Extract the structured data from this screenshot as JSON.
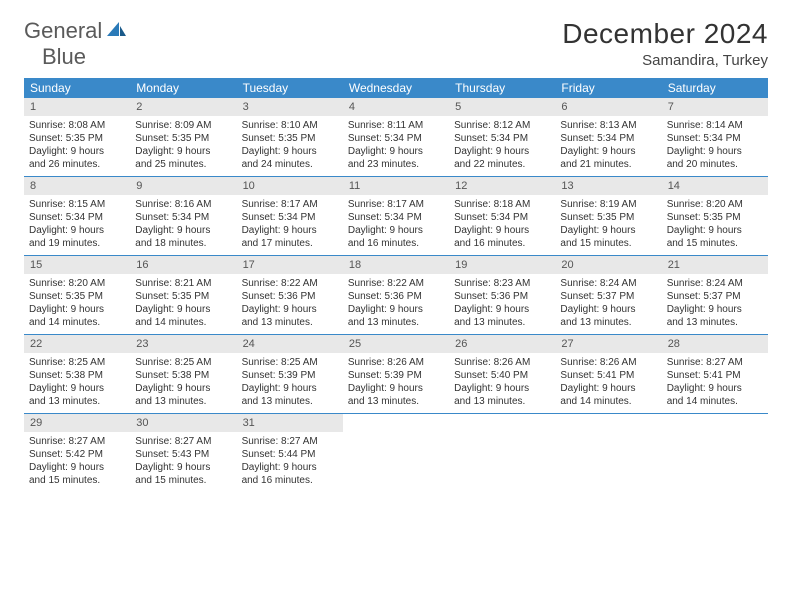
{
  "logo": {
    "text1": "General",
    "text2": "Blue"
  },
  "title": "December 2024",
  "location": "Samandira, Turkey",
  "colors": {
    "header_bg": "#3a89c9",
    "header_text": "#ffffff",
    "daynum_bg": "#e8e8e8",
    "week_border": "#3a89c9",
    "text": "#333333"
  },
  "typography": {
    "title_fontsize": 28,
    "location_fontsize": 15,
    "dayheader_fontsize": 12,
    "cell_fontsize": 10
  },
  "day_names": [
    "Sunday",
    "Monday",
    "Tuesday",
    "Wednesday",
    "Thursday",
    "Friday",
    "Saturday"
  ],
  "weeks": [
    [
      {
        "n": "1",
        "sr": "Sunrise: 8:08 AM",
        "ss": "Sunset: 5:35 PM",
        "d1": "Daylight: 9 hours",
        "d2": "and 26 minutes."
      },
      {
        "n": "2",
        "sr": "Sunrise: 8:09 AM",
        "ss": "Sunset: 5:35 PM",
        "d1": "Daylight: 9 hours",
        "d2": "and 25 minutes."
      },
      {
        "n": "3",
        "sr": "Sunrise: 8:10 AM",
        "ss": "Sunset: 5:35 PM",
        "d1": "Daylight: 9 hours",
        "d2": "and 24 minutes."
      },
      {
        "n": "4",
        "sr": "Sunrise: 8:11 AM",
        "ss": "Sunset: 5:34 PM",
        "d1": "Daylight: 9 hours",
        "d2": "and 23 minutes."
      },
      {
        "n": "5",
        "sr": "Sunrise: 8:12 AM",
        "ss": "Sunset: 5:34 PM",
        "d1": "Daylight: 9 hours",
        "d2": "and 22 minutes."
      },
      {
        "n": "6",
        "sr": "Sunrise: 8:13 AM",
        "ss": "Sunset: 5:34 PM",
        "d1": "Daylight: 9 hours",
        "d2": "and 21 minutes."
      },
      {
        "n": "7",
        "sr": "Sunrise: 8:14 AM",
        "ss": "Sunset: 5:34 PM",
        "d1": "Daylight: 9 hours",
        "d2": "and 20 minutes."
      }
    ],
    [
      {
        "n": "8",
        "sr": "Sunrise: 8:15 AM",
        "ss": "Sunset: 5:34 PM",
        "d1": "Daylight: 9 hours",
        "d2": "and 19 minutes."
      },
      {
        "n": "9",
        "sr": "Sunrise: 8:16 AM",
        "ss": "Sunset: 5:34 PM",
        "d1": "Daylight: 9 hours",
        "d2": "and 18 minutes."
      },
      {
        "n": "10",
        "sr": "Sunrise: 8:17 AM",
        "ss": "Sunset: 5:34 PM",
        "d1": "Daylight: 9 hours",
        "d2": "and 17 minutes."
      },
      {
        "n": "11",
        "sr": "Sunrise: 8:17 AM",
        "ss": "Sunset: 5:34 PM",
        "d1": "Daylight: 9 hours",
        "d2": "and 16 minutes."
      },
      {
        "n": "12",
        "sr": "Sunrise: 8:18 AM",
        "ss": "Sunset: 5:34 PM",
        "d1": "Daylight: 9 hours",
        "d2": "and 16 minutes."
      },
      {
        "n": "13",
        "sr": "Sunrise: 8:19 AM",
        "ss": "Sunset: 5:35 PM",
        "d1": "Daylight: 9 hours",
        "d2": "and 15 minutes."
      },
      {
        "n": "14",
        "sr": "Sunrise: 8:20 AM",
        "ss": "Sunset: 5:35 PM",
        "d1": "Daylight: 9 hours",
        "d2": "and 15 minutes."
      }
    ],
    [
      {
        "n": "15",
        "sr": "Sunrise: 8:20 AM",
        "ss": "Sunset: 5:35 PM",
        "d1": "Daylight: 9 hours",
        "d2": "and 14 minutes."
      },
      {
        "n": "16",
        "sr": "Sunrise: 8:21 AM",
        "ss": "Sunset: 5:35 PM",
        "d1": "Daylight: 9 hours",
        "d2": "and 14 minutes."
      },
      {
        "n": "17",
        "sr": "Sunrise: 8:22 AM",
        "ss": "Sunset: 5:36 PM",
        "d1": "Daylight: 9 hours",
        "d2": "and 13 minutes."
      },
      {
        "n": "18",
        "sr": "Sunrise: 8:22 AM",
        "ss": "Sunset: 5:36 PM",
        "d1": "Daylight: 9 hours",
        "d2": "and 13 minutes."
      },
      {
        "n": "19",
        "sr": "Sunrise: 8:23 AM",
        "ss": "Sunset: 5:36 PM",
        "d1": "Daylight: 9 hours",
        "d2": "and 13 minutes."
      },
      {
        "n": "20",
        "sr": "Sunrise: 8:24 AM",
        "ss": "Sunset: 5:37 PM",
        "d1": "Daylight: 9 hours",
        "d2": "and 13 minutes."
      },
      {
        "n": "21",
        "sr": "Sunrise: 8:24 AM",
        "ss": "Sunset: 5:37 PM",
        "d1": "Daylight: 9 hours",
        "d2": "and 13 minutes."
      }
    ],
    [
      {
        "n": "22",
        "sr": "Sunrise: 8:25 AM",
        "ss": "Sunset: 5:38 PM",
        "d1": "Daylight: 9 hours",
        "d2": "and 13 minutes."
      },
      {
        "n": "23",
        "sr": "Sunrise: 8:25 AM",
        "ss": "Sunset: 5:38 PM",
        "d1": "Daylight: 9 hours",
        "d2": "and 13 minutes."
      },
      {
        "n": "24",
        "sr": "Sunrise: 8:25 AM",
        "ss": "Sunset: 5:39 PM",
        "d1": "Daylight: 9 hours",
        "d2": "and 13 minutes."
      },
      {
        "n": "25",
        "sr": "Sunrise: 8:26 AM",
        "ss": "Sunset: 5:39 PM",
        "d1": "Daylight: 9 hours",
        "d2": "and 13 minutes."
      },
      {
        "n": "26",
        "sr": "Sunrise: 8:26 AM",
        "ss": "Sunset: 5:40 PM",
        "d1": "Daylight: 9 hours",
        "d2": "and 13 minutes."
      },
      {
        "n": "27",
        "sr": "Sunrise: 8:26 AM",
        "ss": "Sunset: 5:41 PM",
        "d1": "Daylight: 9 hours",
        "d2": "and 14 minutes."
      },
      {
        "n": "28",
        "sr": "Sunrise: 8:27 AM",
        "ss": "Sunset: 5:41 PM",
        "d1": "Daylight: 9 hours",
        "d2": "and 14 minutes."
      }
    ],
    [
      {
        "n": "29",
        "sr": "Sunrise: 8:27 AM",
        "ss": "Sunset: 5:42 PM",
        "d1": "Daylight: 9 hours",
        "d2": "and 15 minutes."
      },
      {
        "n": "30",
        "sr": "Sunrise: 8:27 AM",
        "ss": "Sunset: 5:43 PM",
        "d1": "Daylight: 9 hours",
        "d2": "and 15 minutes."
      },
      {
        "n": "31",
        "sr": "Sunrise: 8:27 AM",
        "ss": "Sunset: 5:44 PM",
        "d1": "Daylight: 9 hours",
        "d2": "and 16 minutes."
      },
      {
        "empty": true
      },
      {
        "empty": true
      },
      {
        "empty": true
      },
      {
        "empty": true
      }
    ]
  ]
}
